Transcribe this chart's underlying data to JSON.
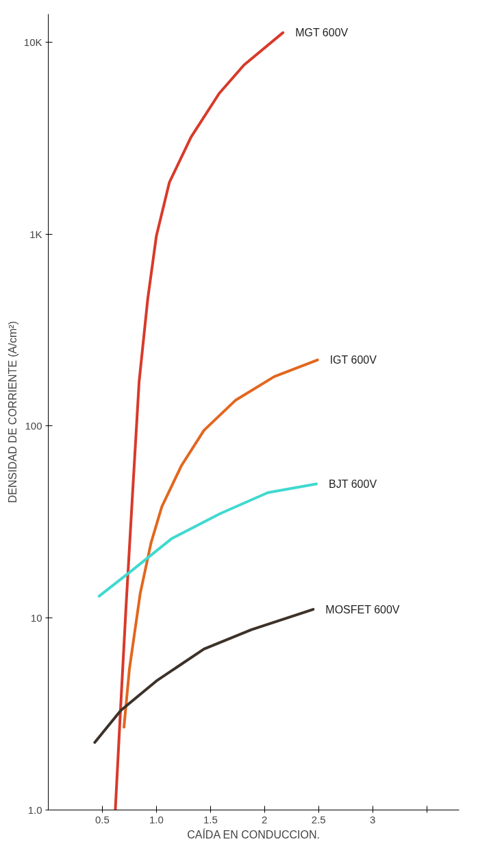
{
  "chart_data": {
    "type": "line",
    "xlabel": "CAÍDA EN CONDUCCION.",
    "ylabel": "DENSIDAD DE CORRIENTE (A/cm²)",
    "log": "y",
    "grid": false,
    "legend": false,
    "marker": "none",
    "line_style": "solid",
    "xlim": [
      0,
      3.8
    ],
    "xticks": [
      {
        "value": 0.5,
        "label": "0.5"
      },
      {
        "value": 1.0,
        "label": "1.0"
      },
      {
        "value": 1.5,
        "label": "1.5"
      },
      2,
      {
        "value": 2.5,
        "label": "2.5"
      },
      3,
      {
        "value": 3.5,
        "label": null
      }
    ],
    "ylim": [
      1,
      14000
    ],
    "yticks": [
      {
        "value": 1,
        "label": "1.0"
      },
      10,
      100,
      {
        "value": 1000,
        "label": "1K"
      },
      {
        "value": 10000,
        "label": "10K"
      }
    ],
    "series": [
      {
        "name": "MGT 600V",
        "color": "#d83a2a",
        "x": [
          0.62,
          0.67,
          0.72,
          0.78,
          0.84,
          0.92,
          1.0,
          1.12,
          1.32,
          1.58,
          1.81,
          2.17
        ],
        "values": [
          1.0,
          3.5,
          11.7,
          45,
          170,
          460,
          980,
          1860,
          3200,
          5400,
          7600,
          11200
        ]
      },
      {
        "name": "IGT 600V",
        "color": "#e2671f",
        "x": [
          0.7,
          0.75,
          0.85,
          0.95,
          1.05,
          1.23,
          1.44,
          1.73,
          2.09,
          2.49
        ],
        "values": [
          2.7,
          5.4,
          13.4,
          24.6,
          38,
          62,
          95,
          136,
          181,
          221
        ]
      },
      {
        "name": "BJT 600V",
        "color": "#3fd9cf",
        "x": [
          0.47,
          0.78,
          1.14,
          1.59,
          2.03,
          2.48
        ],
        "values": [
          13.0,
          17.8,
          25.9,
          35,
          45,
          50
        ]
      },
      {
        "name": "MOSFET 600V",
        "color": "#3d3229",
        "x": [
          0.43,
          0.67,
          1.0,
          1.44,
          1.88,
          2.45
        ],
        "values": [
          2.25,
          3.3,
          4.7,
          6.9,
          8.7,
          11.1
        ]
      }
    ]
  }
}
